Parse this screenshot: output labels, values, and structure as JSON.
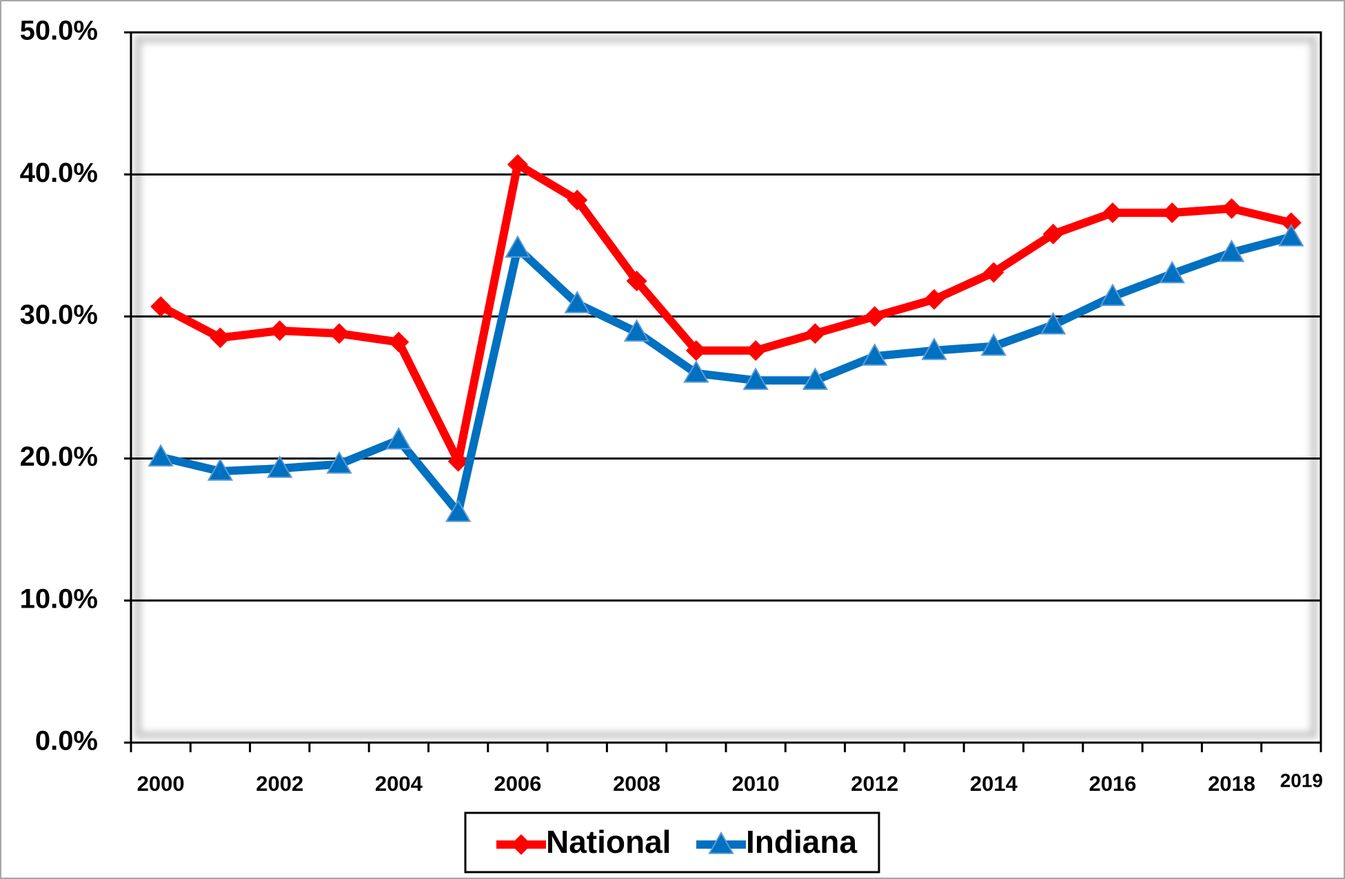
{
  "chart_data": {
    "type": "line",
    "categories": [
      "2000",
      null,
      "2002",
      null,
      "2004",
      null,
      "2006",
      null,
      "2008",
      null,
      "2010",
      null,
      "2012",
      null,
      "2014",
      null,
      "2016",
      null,
      "2018",
      "2019"
    ],
    "series": [
      {
        "name": "National",
        "color": "#ff0000",
        "marker": "diamond",
        "values": [
          30.7,
          28.5,
          29.0,
          28.8,
          28.2,
          19.8,
          40.7,
          38.2,
          32.5,
          27.6,
          27.6,
          28.8,
          30.0,
          31.2,
          33.1,
          35.8,
          37.3,
          37.3,
          37.6,
          36.6
        ]
      },
      {
        "name": "Indiana",
        "color": "#0070c0",
        "marker": "triangle",
        "values": [
          20.1,
          19.1,
          19.3,
          19.6,
          21.3,
          16.2,
          34.8,
          30.9,
          28.9,
          26.0,
          25.5,
          25.5,
          27.2,
          27.6,
          27.9,
          29.4,
          31.4,
          33.0,
          34.5,
          35.6
        ]
      }
    ],
    "ylim": [
      0,
      50
    ],
    "yticks": [
      {
        "value": 0,
        "label": "0.0%"
      },
      {
        "value": 10,
        "label": "10.0%"
      },
      {
        "value": 20,
        "label": "20.0%"
      },
      {
        "value": 30,
        "label": "30.0%"
      },
      {
        "value": 40,
        "label": "40.0%"
      },
      {
        "value": 50,
        "label": "50.0%"
      }
    ],
    "grid": true,
    "legend": "bottom"
  }
}
